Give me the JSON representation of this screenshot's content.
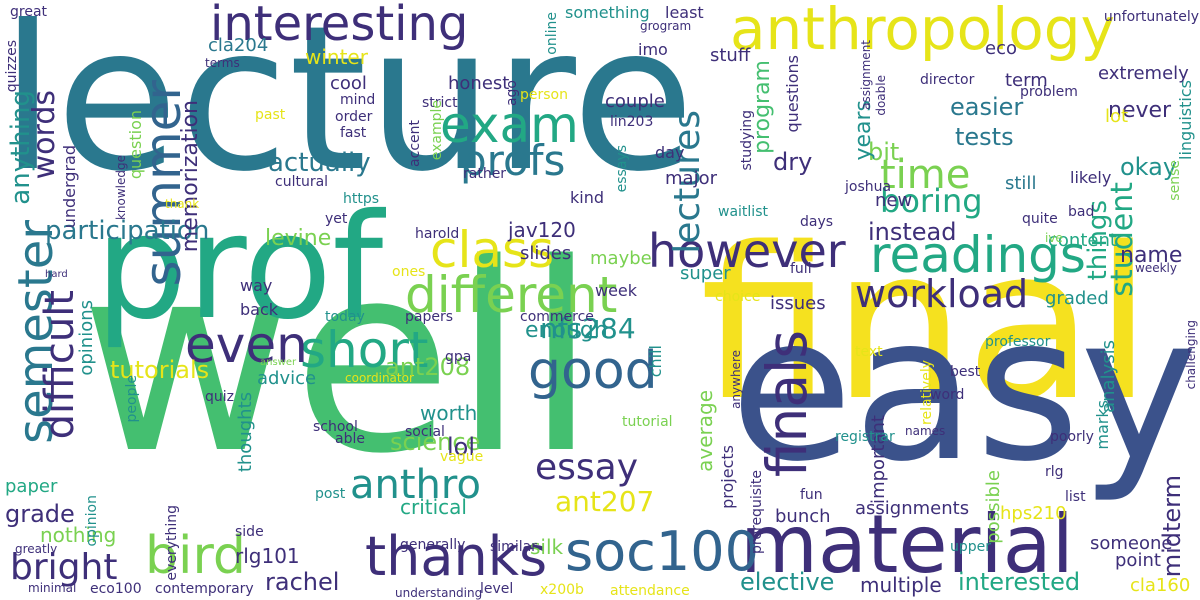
{
  "colors": {
    "teal": "#2a788e",
    "green": "#44bf70",
    "yellow": "#f5e11f",
    "purple": "#3e2f79",
    "darkpurple": "#472d7b",
    "blue": "#32648e",
    "sea": "#21918c",
    "lime": "#7ad151",
    "lightgreen": "#a5db36",
    "cyan": "#1fa187"
  },
  "words": [
    {
      "text": "lecture",
      "color": "#2a788e"
    },
    {
      "text": "well",
      "color": "#44bf70"
    },
    {
      "text": "final",
      "color": "#f5e11f"
    },
    {
      "text": "easy",
      "color": "#3b528b"
    },
    {
      "text": "prof",
      "color": "#22a884"
    },
    {
      "text": "material",
      "color": "#3e2f79"
    },
    {
      "text": "anthropology",
      "color": "#e6e419"
    },
    {
      "text": "interesting",
      "color": "#3e2f79"
    },
    {
      "text": "summer",
      "color": "#32648e"
    },
    {
      "text": "exam",
      "color": "#22a884"
    },
    {
      "text": "class",
      "color": "#e6e419"
    },
    {
      "text": "however",
      "color": "#3e2f79"
    },
    {
      "text": "readings",
      "color": "#22a884"
    },
    {
      "text": "different",
      "color": "#7ad151"
    },
    {
      "text": "workload",
      "color": "#3e2f79"
    },
    {
      "text": "profs",
      "color": "#2a788e"
    },
    {
      "text": "short",
      "color": "#22a884"
    },
    {
      "text": "good",
      "color": "#32648e"
    },
    {
      "text": "even",
      "color": "#3e2f79"
    },
    {
      "text": "finals",
      "color": "#3e2f79"
    },
    {
      "text": "thanks",
      "color": "#3e2f79"
    },
    {
      "text": "soc100",
      "color": "#32648e"
    },
    {
      "text": "bird",
      "color": "#7ad151"
    },
    {
      "text": "bright",
      "color": "#3e2f79"
    },
    {
      "text": "anthro",
      "color": "#21918c"
    },
    {
      "text": "essay",
      "color": "#3e2f79"
    },
    {
      "text": "semester",
      "color": "#2a788e"
    },
    {
      "text": "difficult",
      "color": "#3e2f79"
    },
    {
      "text": "lectures",
      "color": "#2a788e"
    },
    {
      "text": "time",
      "color": "#7ad151"
    },
    {
      "text": "boring",
      "color": "#22a884"
    },
    {
      "text": "actually",
      "color": "#2a788e"
    },
    {
      "text": "participation",
      "color": "#2a788e"
    },
    {
      "text": "words",
      "color": "#3e2f79"
    },
    {
      "text": "anything",
      "color": "#21918c"
    },
    {
      "text": "memorization",
      "color": "#3e2f79"
    },
    {
      "text": "nfs284",
      "color": "#21918c"
    },
    {
      "text": "ant208",
      "color": "#7ad151"
    },
    {
      "text": "ant207",
      "color": "#e6e419"
    },
    {
      "text": "science",
      "color": "#7ad151"
    },
    {
      "text": "lol",
      "color": "#3e2f79"
    },
    {
      "text": "rachel",
      "color": "#3e2f79"
    },
    {
      "text": "grade",
      "color": "#3e2f79"
    },
    {
      "text": "tutorials",
      "color": "#e6e419"
    },
    {
      "text": "enough",
      "color": "#21918c"
    },
    {
      "text": "easier",
      "color": "#2a788e"
    },
    {
      "text": "tests",
      "color": "#2a788e"
    },
    {
      "text": "never",
      "color": "#3e2f79"
    },
    {
      "text": "okay",
      "color": "#21918c"
    },
    {
      "text": "student",
      "color": "#22a884"
    },
    {
      "text": "things",
      "color": "#22a884"
    },
    {
      "text": "name",
      "color": "#3e2f79"
    },
    {
      "text": "instead",
      "color": "#3e2f79"
    },
    {
      "text": "program",
      "color": "#44bf70"
    },
    {
      "text": "dry",
      "color": "#3e2f79"
    },
    {
      "text": "bit",
      "color": "#7ad151"
    },
    {
      "text": "years",
      "color": "#21918c"
    },
    {
      "text": "interested",
      "color": "#22a884"
    },
    {
      "text": "elective",
      "color": "#21918c"
    },
    {
      "text": "multiple",
      "color": "#3e2f79"
    },
    {
      "text": "midterm",
      "color": "#3e2f79"
    },
    {
      "text": "average",
      "color": "#7ad151"
    },
    {
      "text": "levine",
      "color": "#7ad151"
    },
    {
      "text": "winter",
      "color": "#e6e419"
    },
    {
      "text": "cla204",
      "color": "#2a788e"
    },
    {
      "text": "jav120",
      "color": "#3e2f79"
    },
    {
      "text": "rlg101",
      "color": "#3e2f79"
    },
    {
      "text": "silk",
      "color": "#7ad151"
    },
    {
      "text": "worth",
      "color": "#21918c"
    },
    {
      "text": "critical",
      "color": "#22a884"
    },
    {
      "text": "advice",
      "color": "#21918c"
    },
    {
      "text": "thoughts",
      "color": "#21918c"
    },
    {
      "text": "nothing",
      "color": "#7ad151"
    },
    {
      "text": "paper",
      "color": "#22a884"
    },
    {
      "text": "cool",
      "color": "#3e2f79"
    },
    {
      "text": "honest",
      "color": "#3e2f79"
    },
    {
      "text": "couple",
      "color": "#3e2f79"
    },
    {
      "text": "stuff",
      "color": "#3e2f79"
    },
    {
      "text": "eco",
      "color": "#3e2f79"
    },
    {
      "text": "term",
      "color": "#3e2f79"
    },
    {
      "text": "extremely",
      "color": "#3e2f79"
    },
    {
      "text": "lot",
      "color": "#e6e419"
    },
    {
      "text": "still",
      "color": "#2a788e"
    },
    {
      "text": "hps210",
      "color": "#e6e419"
    },
    {
      "text": "assignments",
      "color": "#3e2f79"
    },
    {
      "text": "bunch",
      "color": "#3e2f79"
    },
    {
      "text": "someone",
      "color": "#3e2f79"
    },
    {
      "text": "point",
      "color": "#3e2f79"
    },
    {
      "text": "cla160",
      "color": "#e6e419"
    },
    {
      "text": "super",
      "color": "#21918c"
    },
    {
      "text": "issues",
      "color": "#3e2f79"
    },
    {
      "text": "slides",
      "color": "#3e2f79"
    },
    {
      "text": "maybe",
      "color": "#7ad151"
    },
    {
      "text": "week",
      "color": "#3e2f79"
    },
    {
      "text": "major",
      "color": "#3e2f79"
    },
    {
      "text": "day",
      "color": "#3e2f79"
    },
    {
      "text": "kind",
      "color": "#3e2f79"
    },
    {
      "text": "new",
      "color": "#3e2f79"
    },
    {
      "text": "content",
      "color": "#22a884"
    },
    {
      "text": "graded",
      "color": "#21918c"
    },
    {
      "text": "analysis",
      "color": "#21918c"
    },
    {
      "text": "important",
      "color": "#3e2f79"
    },
    {
      "text": "possible",
      "color": "#7ad151"
    },
    {
      "text": "marks",
      "color": "#21918c"
    },
    {
      "text": "way",
      "color": "#3e2f79"
    },
    {
      "text": "back",
      "color": "#3e2f79"
    },
    {
      "text": "opinions",
      "color": "#21918c"
    },
    {
      "text": "undergrad",
      "color": "#3e2f79"
    },
    {
      "text": "question",
      "color": "#7ad151"
    },
    {
      "text": "quizzes",
      "color": "#3e2f79"
    },
    {
      "text": "great",
      "color": "#3e2f79"
    },
    {
      "text": "something",
      "color": "#21918c"
    },
    {
      "text": "least",
      "color": "#3e2f79"
    },
    {
      "text": "imo",
      "color": "#3e2f79"
    },
    {
      "text": "questions",
      "color": "#3e2f79"
    },
    {
      "text": "studying",
      "color": "#3e2f79"
    },
    {
      "text": "director",
      "color": "#3e2f79"
    },
    {
      "text": "problem",
      "color": "#3e2f79"
    },
    {
      "text": "unfortunately",
      "color": "#3e2f79"
    },
    {
      "text": "linguistics",
      "color": "#21918c"
    },
    {
      "text": "sense",
      "color": "#7ad151"
    },
    {
      "text": "likely",
      "color": "#3e2f79"
    },
    {
      "text": "bad",
      "color": "#3e2f79"
    },
    {
      "text": "ive",
      "color": "#7ad151"
    },
    {
      "text": "quite",
      "color": "#3e2f79"
    },
    {
      "text": "days",
      "color": "#3e2f79"
    },
    {
      "text": "waitlist",
      "color": "#21918c"
    },
    {
      "text": "joshua",
      "color": "#3e2f79"
    },
    {
      "text": "full",
      "color": "#3e2f79"
    },
    {
      "text": "choice",
      "color": "#e6e419"
    },
    {
      "text": "relatively",
      "color": "#e6e419"
    },
    {
      "text": "text",
      "color": "#e6e419"
    },
    {
      "text": "professor",
      "color": "#21918c"
    },
    {
      "text": "best",
      "color": "#3e2f79"
    },
    {
      "text": "word",
      "color": "#3e2f79"
    },
    {
      "text": "weekly",
      "color": "#3e2f79"
    },
    {
      "text": "challenging",
      "color": "#3e2f79"
    },
    {
      "text": "poorly",
      "color": "#3e2f79"
    },
    {
      "text": "rlg",
      "color": "#3e2f79"
    },
    {
      "text": "list",
      "color": "#3e2f79"
    },
    {
      "text": "upper",
      "color": "#21918c"
    },
    {
      "text": "registrar",
      "color": "#21918c"
    },
    {
      "text": "fun",
      "color": "#3e2f79"
    },
    {
      "text": "names",
      "color": "#3e2f79"
    },
    {
      "text": "projects",
      "color": "#3e2f79"
    },
    {
      "text": "prerequisite",
      "color": "#3e2f79"
    },
    {
      "text": "anywhere",
      "color": "#3e2f79"
    },
    {
      "text": "commerce",
      "color": "#3e2f79"
    },
    {
      "text": "papers",
      "color": "#3e2f79"
    },
    {
      "text": "today",
      "color": "#21918c"
    },
    {
      "text": "gpa",
      "color": "#3e2f79"
    },
    {
      "text": "chill",
      "color": "#21918c"
    },
    {
      "text": "tutorial",
      "color": "#7ad151"
    },
    {
      "text": "coordinator",
      "color": "#e6e419"
    },
    {
      "text": "quiz",
      "color": "#3e2f79"
    },
    {
      "text": "answer",
      "color": "#7ad151"
    },
    {
      "text": "people",
      "color": "#21918c"
    },
    {
      "text": "opinion",
      "color": "#21918c"
    },
    {
      "text": "school",
      "color": "#3e2f79"
    },
    {
      "text": "able",
      "color": "#3e2f79"
    },
    {
      "text": "social",
      "color": "#3e2f79"
    },
    {
      "text": "vague",
      "color": "#e6e419"
    },
    {
      "text": "post",
      "color": "#21918c"
    },
    {
      "text": "everything",
      "color": "#3e2f79"
    },
    {
      "text": "side",
      "color": "#3e2f79"
    },
    {
      "text": "generally",
      "color": "#3e2f79"
    },
    {
      "text": "similar",
      "color": "#3e2f79"
    },
    {
      "text": "greatly",
      "color": "#3e2f79"
    },
    {
      "text": "minimal",
      "color": "#3e2f79"
    },
    {
      "text": "eco100",
      "color": "#3e2f79"
    },
    {
      "text": "contemporary",
      "color": "#3e2f79"
    },
    {
      "text": "understanding",
      "color": "#3e2f79"
    },
    {
      "text": "level",
      "color": "#3e2f79"
    },
    {
      "text": "x200b",
      "color": "#e6e419"
    },
    {
      "text": "attendance",
      "color": "#e6e419"
    },
    {
      "text": "mind",
      "color": "#3e2f79"
    },
    {
      "text": "order",
      "color": "#3e2f79"
    },
    {
      "text": "fast",
      "color": "#3e2f79"
    },
    {
      "text": "strict",
      "color": "#3e2f79"
    },
    {
      "text": "accent",
      "color": "#3e2f79"
    },
    {
      "text": "example",
      "color": "#7ad151"
    },
    {
      "text": "rather",
      "color": "#3e2f79"
    },
    {
      "text": "essays",
      "color": "#21918c"
    },
    {
      "text": "lin203",
      "color": "#3e2f79"
    },
    {
      "text": "person",
      "color": "#e6e419"
    },
    {
      "text": "ago",
      "color": "#3e2f79"
    },
    {
      "text": "online",
      "color": "#21918c"
    },
    {
      "text": "grogram",
      "color": "#3e2f79"
    },
    {
      "text": "assignment",
      "color": "#3e2f79"
    },
    {
      "text": "doable",
      "color": "#3e2f79"
    },
    {
      "text": "past",
      "color": "#e6e419"
    },
    {
      "text": "terms",
      "color": "#3e2f79"
    },
    {
      "text": "knowledge",
      "color": "#3e2f79"
    },
    {
      "text": "cultural",
      "color": "#3e2f79"
    },
    {
      "text": "thank",
      "color": "#e6e419"
    },
    {
      "text": "https",
      "color": "#21918c"
    },
    {
      "text": "yet",
      "color": "#3e2f79"
    },
    {
      "text": "harold",
      "color": "#3e2f79"
    },
    {
      "text": "ones",
      "color": "#e6e419"
    },
    {
      "text": "hard",
      "color": "#3e2f79"
    }
  ]
}
